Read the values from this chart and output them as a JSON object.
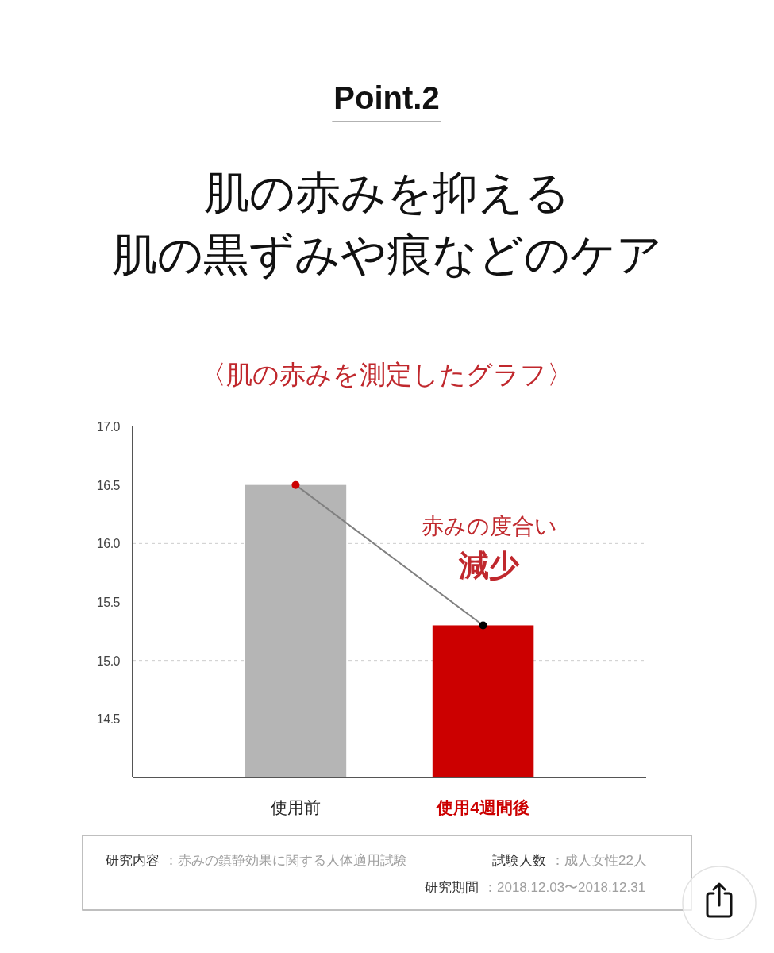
{
  "chart_data": {
    "type": "bar",
    "title": "Point.2",
    "subtitle": "肌の赤みを抑える",
    "categories": [
      "使用前",
      "使用4週間後"
    ],
    "series": [
      {
        "colors": [
          "#b5b5b5",
          "#cc0000"
        ],
        "values": [
          16.5,
          15.3
        ]
      },
      {
        "type": "line",
        "color": "#808080",
        "colors": [
          "#cc0000",
          "#000000"
        ],
        "values": [
          16.5,
          15.3
        ]
      }
    ],
    "marker": "circle",
    "ylim": [
      14,
      17
    ],
    "yticks": [
      14.5,
      {
        "value": 15,
        "label": "15.0"
      },
      15.5,
      {
        "value": 16,
        "label": "16.0"
      },
      16.5,
      {
        "value": 17,
        "label": "17.0"
      }
    ],
    "ref_lines": [
      {
        "axis": "y",
        "value": 16,
        "line_style": "dashed",
        "color": "#cccccc"
      },
      {
        "axis": "y",
        "value": 15,
        "line_style": "dashed",
        "color": "#cccccc"
      }
    ],
    "annotations": [
      "肌の黒ずみや痕などのケア",
      "〈肌の赤みを測定したグラフ〉",
      "赤みの度合い",
      "減少",
      "研究内容：赤みの鎮静効果に関する人体適用試験",
      "試験人数：成人女性22人",
      "研究期間：2018.12.03〜2018.12.31"
    ]
  }
}
